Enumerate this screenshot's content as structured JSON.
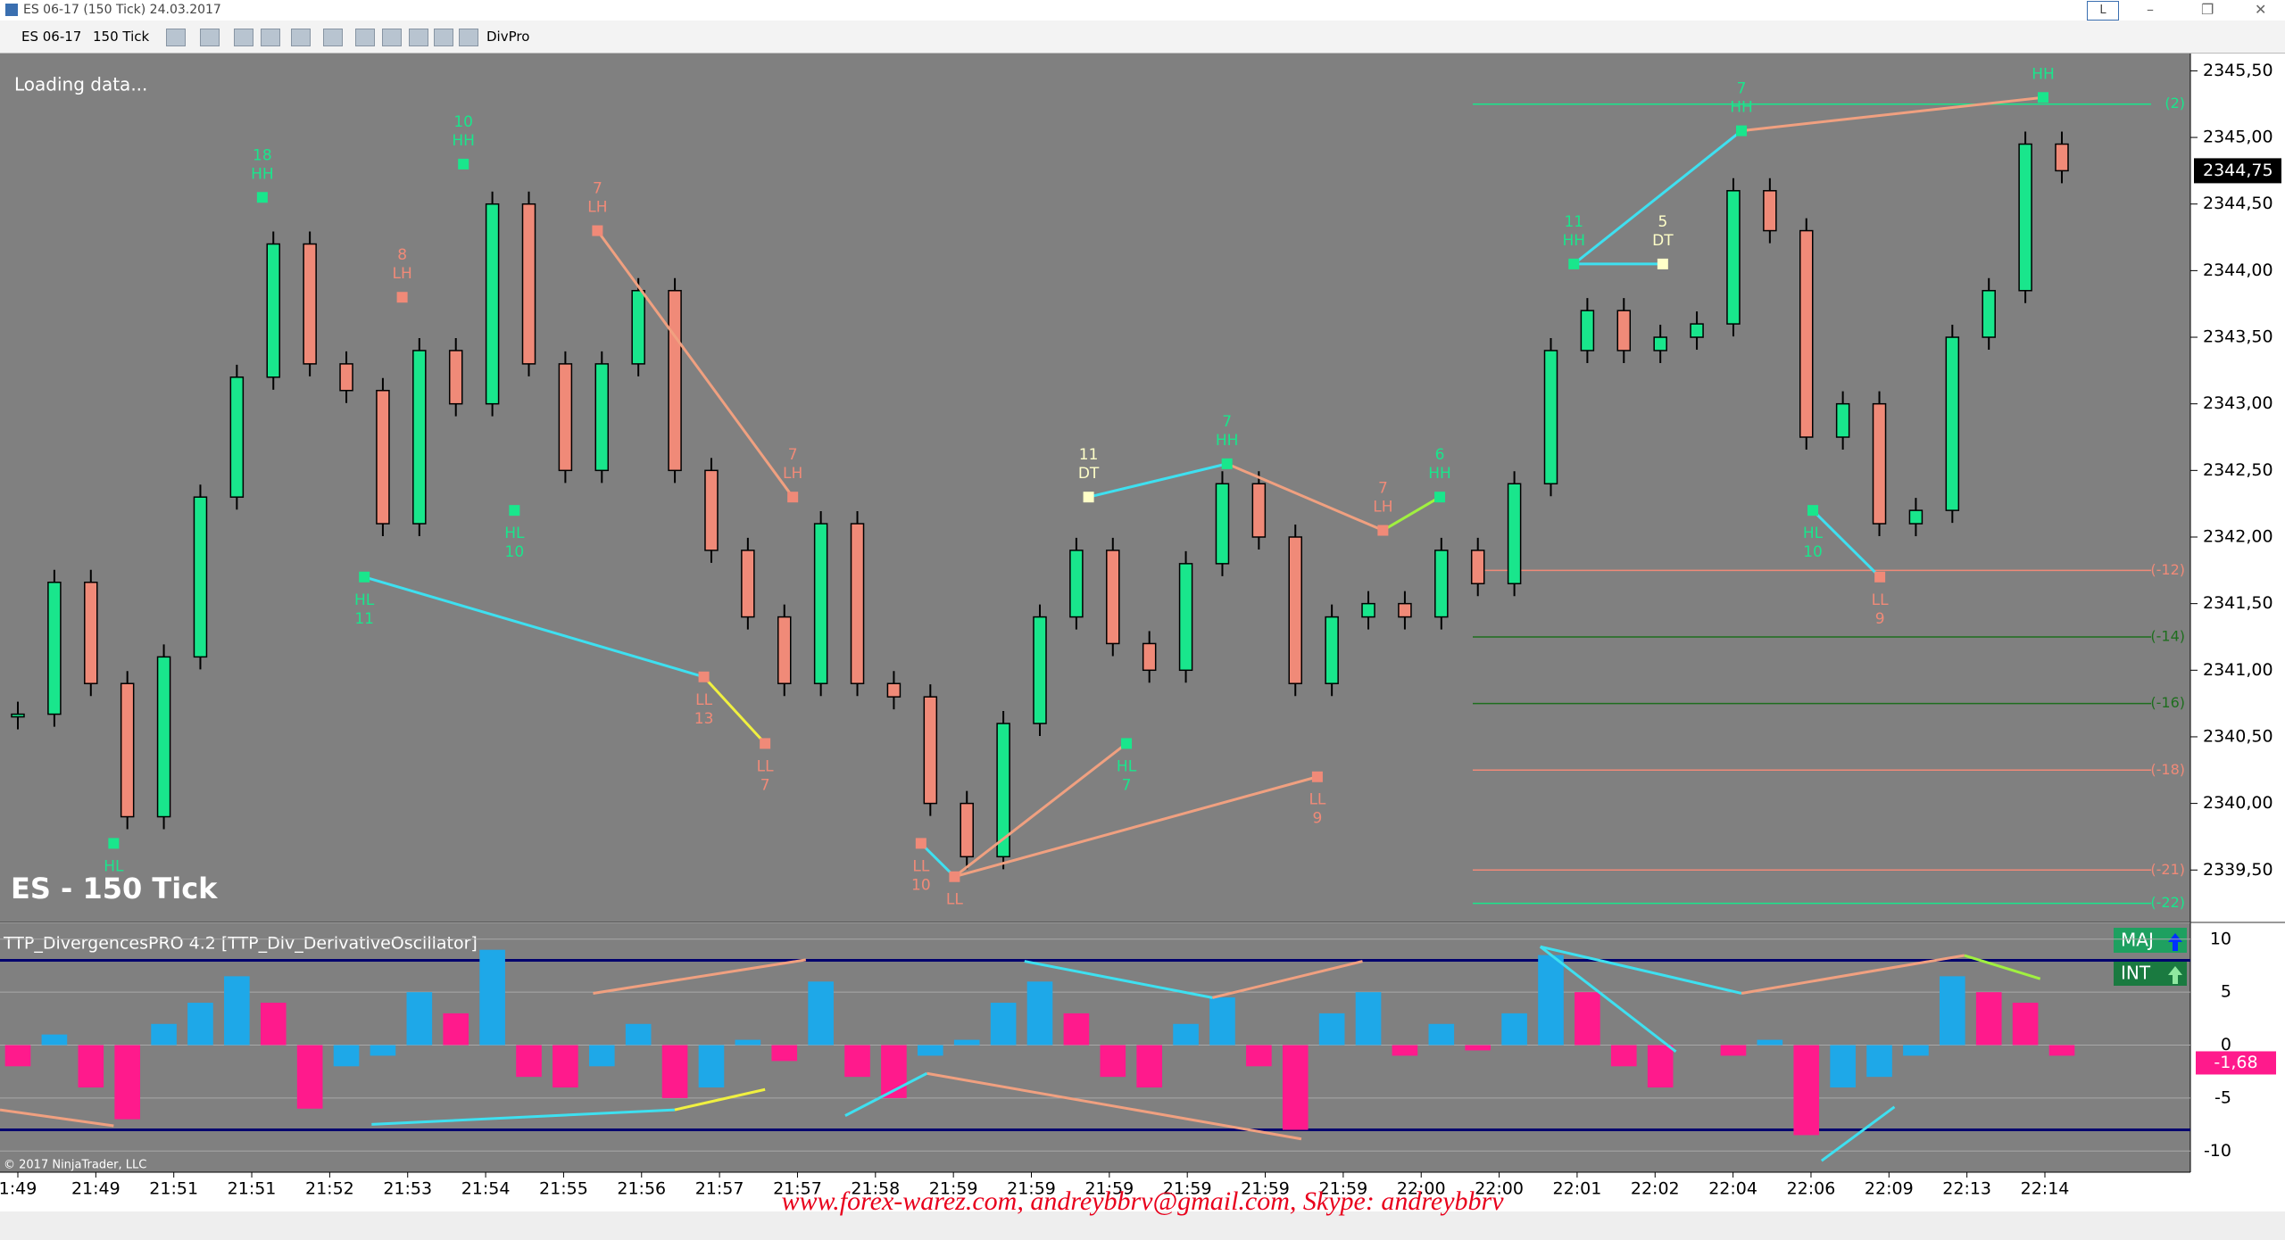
{
  "window": {
    "title": "ES 06-17 (150 Tick)  24.03.2017",
    "button": "L"
  },
  "toolbar": [
    "ES 06-17",
    "150 Tick",
    "DivPro"
  ],
  "status": "Loading data...",
  "instrument_label": "ES - 150 Tick",
  "copyright": "© 2017 NinjaTrader, LLC",
  "watermark": "www.forex-warez.com, andreybbrv@gmail.com, Skype: andreybbrv",
  "time_axis": [
    "1:49",
    "21:49",
    "21:51",
    "21:51",
    "21:52",
    "21:53",
    "21:54",
    "21:55",
    "21:56",
    "21:57",
    "21:57",
    "21:58",
    "21:59",
    "21:59",
    "21:59",
    "21:59",
    "21:59",
    "21:59",
    "22:00",
    "22:00",
    "22:01",
    "22:02",
    "22:04",
    "22:06",
    "22:09",
    "22:13",
    "22:14"
  ],
  "price_chart": {
    "type": "candlestick",
    "ylim": [
      2339.12,
      2345.63
    ],
    "yticks": [
      {
        "value": 2339.5,
        "label": "2339,50"
      },
      {
        "value": 2340,
        "label": "2340,00"
      },
      {
        "value": 2340.5,
        "label": "2340,50"
      },
      {
        "value": 2341,
        "label": "2341,00"
      },
      {
        "value": 2341.5,
        "label": "2341,50"
      },
      {
        "value": 2342,
        "label": "2342,00"
      },
      {
        "value": 2342.5,
        "label": "2342,50"
      },
      {
        "value": 2343,
        "label": "2343,00"
      },
      {
        "value": 2343.5,
        "label": "2343,50"
      },
      {
        "value": 2344,
        "label": "2344,00"
      },
      {
        "value": 2344.5,
        "label": "2344,50"
      },
      {
        "value": 2345,
        "label": "2345,00"
      },
      {
        "value": 2345.5,
        "label": "2345,50"
      }
    ],
    "up_color": "#19e68c",
    "down_color": "#f08a78",
    "values": [
      2340.67,
      2341.66,
      2340.9,
      2339.9,
      2341.1,
      2342.3,
      2343.2,
      2344.2,
      2343.3,
      2343.1,
      2342.1,
      2343.4,
      2343.0,
      2344.5,
      2343.3,
      2342.5,
      2343.3,
      2343.85,
      2342.5,
      2341.9,
      2341.4,
      2340.9,
      2342.1,
      2340.9,
      2340.8,
      2340.0,
      2339.6,
      2340.6,
      2341.4,
      2341.9,
      2341.2,
      2341.0,
      2341.8,
      2342.4,
      2342.0,
      2340.9,
      2341.4,
      2341.5,
      2341.4,
      2341.9,
      2341.65,
      2342.4,
      2343.4,
      2343.7,
      2343.4,
      2343.5,
      2343.6,
      2344.6,
      2344.3,
      2342.75,
      2343.0,
      2342.1,
      2342.2,
      2343.5,
      2343.85,
      2344.95,
      2344.75
    ],
    "current_price": {
      "value": 2344.75,
      "label": "2344,75"
    },
    "levels": [
      {
        "label": "(2)",
        "value": 2345.25,
        "color": "#19e68c"
      },
      {
        "label": "(-12)",
        "value": 2341.75,
        "color": "#f08a78"
      },
      {
        "label": "(-14)",
        "value": 2341.25,
        "color": "#1e6e1e"
      },
      {
        "label": "(-16)",
        "value": 2340.75,
        "color": "#1e6e1e"
      },
      {
        "label": "(-18)",
        "value": 2340.25,
        "color": "#f08a78"
      },
      {
        "label": "(-21)",
        "value": 2339.5,
        "color": "#f08a78"
      },
      {
        "label": "(-22)",
        "value": 2339.25,
        "color": "#19e68c"
      }
    ],
    "pivots": [
      {
        "lines": [
          "18",
          "HH"
        ],
        "value": 2344.55,
        "color": "#19e68c",
        "position": "above"
      },
      {
        "lines": [
          "10",
          "HH"
        ],
        "value": 2344.8,
        "color": "#19e68c",
        "position": "above"
      },
      {
        "lines": [
          "8",
          "LH"
        ],
        "value": 2343.8,
        "color": "#f08a78",
        "position": "above"
      },
      {
        "lines": [
          "7",
          "LH"
        ],
        "value": 2344.3,
        "color": "#f08a78",
        "position": "above"
      },
      {
        "lines": [
          "HL",
          "11"
        ],
        "value": 2341.7,
        "color": "#19e68c",
        "position": "below"
      },
      {
        "lines": [
          "HL",
          "10"
        ],
        "value": 2342.2,
        "color": "#19e68c",
        "position": "below"
      },
      {
        "lines": [
          "HL"
        ],
        "value": 2339.7,
        "color": "#19e68c",
        "position": "below"
      },
      {
        "lines": [
          "LL",
          "13"
        ],
        "value": 2340.95,
        "color": "#f08a78",
        "position": "below"
      },
      {
        "lines": [
          "LL",
          "7"
        ],
        "value": 2340.45,
        "color": "#f08a78",
        "position": "below"
      },
      {
        "lines": [
          "7",
          "LH"
        ],
        "value": 2342.3,
        "color": "#f08a78",
        "position": "above"
      },
      {
        "lines": [
          "LL",
          "10"
        ],
        "value": 2339.7,
        "color": "#f08a78",
        "position": "below"
      },
      {
        "lines": [
          "LL"
        ],
        "value": 2339.45,
        "color": "#f08a78",
        "position": "below"
      },
      {
        "lines": [
          "11",
          "DT"
        ],
        "value": 2342.3,
        "color": "#ffffc8",
        "position": "above"
      },
      {
        "lines": [
          "7",
          "HH"
        ],
        "value": 2342.55,
        "color": "#19e68c",
        "position": "above"
      },
      {
        "lines": [
          "HL",
          "7"
        ],
        "value": 2340.45,
        "color": "#19e68c",
        "position": "below"
      },
      {
        "lines": [
          "LL",
          "9"
        ],
        "value": 2340.2,
        "color": "#f08a78",
        "position": "below"
      },
      {
        "lines": [
          "7",
          "LH"
        ],
        "value": 2342.05,
        "color": "#f08a78",
        "position": "above"
      },
      {
        "lines": [
          "6",
          "HH"
        ],
        "value": 2342.3,
        "color": "#19e68c",
        "position": "above"
      },
      {
        "lines": [
          "11",
          "HH"
        ],
        "value": 2344.05,
        "color": "#19e68c",
        "position": "above"
      },
      {
        "lines": [
          "5",
          "DT"
        ],
        "value": 2344.05,
        "color": "#ffffc8",
        "position": "above"
      },
      {
        "lines": [
          "7",
          "HH"
        ],
        "value": 2345.05,
        "color": "#19e68c",
        "position": "above"
      },
      {
        "lines": [
          "HL",
          "10"
        ],
        "value": 2342.2,
        "color": "#19e68c",
        "position": "below"
      },
      {
        "lines": [
          "LL",
          "9"
        ],
        "value": 2341.7,
        "color": "#f08a78",
        "position": "below"
      },
      {
        "lines": [
          "HH"
        ],
        "value": 2345.3,
        "color": "#19e68c",
        "position": "above"
      }
    ]
  },
  "oscillator": {
    "type": "histogram",
    "title": "TTP_DivergencesPRO 4.2 [TTP_Div_DerivativeOscillator]",
    "ylim": [
      -12,
      11.5
    ],
    "yticks": [
      10,
      5,
      0,
      -5,
      -10
    ],
    "rising_color": "#1ea8e8",
    "falling_color": "#ff1a8c",
    "levels": [
      8,
      -8
    ],
    "level_color": "#00006e",
    "values": [
      -2,
      1,
      -4,
      -7,
      2,
      4,
      6.5,
      4,
      -6,
      -2,
      -1,
      5,
      3,
      9,
      -3,
      -4,
      -2,
      2,
      -5,
      -4,
      0.5,
      -1.5,
      6,
      -3,
      -5,
      -1,
      0.5,
      4,
      6,
      3,
      -3,
      -4,
      2,
      4.5,
      -2,
      -8,
      3,
      5,
      -1,
      2,
      -0.5,
      3,
      8.5,
      5,
      -2,
      -4,
      0,
      -1,
      0.5,
      -8.5,
      -4,
      -3,
      -1,
      6.5,
      5,
      4,
      -1
    ],
    "current": {
      "value": -1.68,
      "label": "-1,68"
    },
    "badges": [
      "MAJ",
      "INT"
    ]
  }
}
